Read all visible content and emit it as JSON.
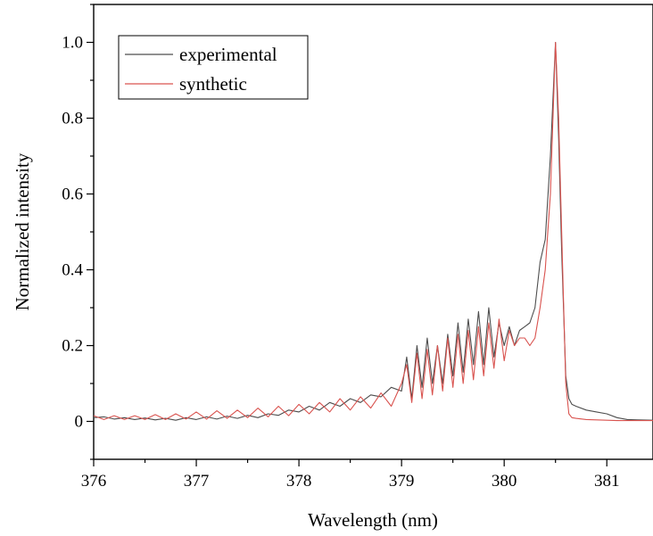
{
  "chart_data": {
    "type": "line",
    "title": "",
    "xlabel": "Wavelength (nm)",
    "ylabel": "Normalized intensity",
    "xlim": [
      376,
      381.45
    ],
    "ylim": [
      -0.1,
      1.1
    ],
    "xticks": [
      376,
      377,
      378,
      379,
      380,
      381
    ],
    "xtick_labels": [
      "376",
      "377",
      "378",
      "379",
      "380",
      "381"
    ],
    "yticks": [
      0,
      0.2,
      0.4,
      0.6,
      0.8,
      1.0
    ],
    "ytick_labels": [
      "0",
      "0.2",
      "0.4",
      "0.6",
      "0.8",
      "1.0"
    ],
    "grid": false,
    "legend_position": "top-left",
    "series": [
      {
        "name": "experimental",
        "color": "#4d4d4d",
        "x": [
          376.0,
          376.1,
          376.2,
          376.3,
          376.4,
          376.5,
          376.6,
          376.7,
          376.8,
          376.9,
          377.0,
          377.1,
          377.2,
          377.3,
          377.4,
          377.5,
          377.6,
          377.7,
          377.8,
          377.9,
          378.0,
          378.1,
          378.2,
          378.3,
          378.4,
          378.5,
          378.6,
          378.7,
          378.8,
          378.9,
          379.0,
          379.05,
          379.1,
          379.15,
          379.2,
          379.25,
          379.3,
          379.35,
          379.4,
          379.45,
          379.5,
          379.55,
          379.6,
          379.65,
          379.7,
          379.75,
          379.8,
          379.85,
          379.9,
          379.95,
          380.0,
          380.05,
          380.1,
          380.15,
          380.2,
          380.25,
          380.3,
          380.35,
          380.4,
          380.45,
          380.5,
          380.53,
          380.56,
          380.6,
          380.63,
          380.66,
          380.7,
          380.8,
          380.9,
          381.0,
          381.1,
          381.2,
          381.3,
          381.45
        ],
        "y": [
          0.01,
          0.012,
          0.006,
          0.01,
          0.005,
          0.009,
          0.004,
          0.008,
          0.003,
          0.01,
          0.005,
          0.012,
          0.006,
          0.014,
          0.008,
          0.016,
          0.01,
          0.02,
          0.016,
          0.03,
          0.025,
          0.04,
          0.03,
          0.05,
          0.04,
          0.06,
          0.05,
          0.07,
          0.065,
          0.09,
          0.08,
          0.17,
          0.06,
          0.2,
          0.09,
          0.22,
          0.1,
          0.2,
          0.1,
          0.23,
          0.12,
          0.26,
          0.13,
          0.27,
          0.15,
          0.29,
          0.15,
          0.3,
          0.17,
          0.26,
          0.2,
          0.25,
          0.2,
          0.24,
          0.25,
          0.26,
          0.3,
          0.42,
          0.48,
          0.7,
          1.0,
          0.75,
          0.45,
          0.12,
          0.06,
          0.045,
          0.04,
          0.03,
          0.025,
          0.02,
          0.01,
          0.005,
          0.004,
          0.003
        ]
      },
      {
        "name": "synthetic",
        "color": "#d9534f",
        "x": [
          376.0,
          376.1,
          376.2,
          376.3,
          376.4,
          376.5,
          376.6,
          376.7,
          376.8,
          376.9,
          377.0,
          377.1,
          377.2,
          377.3,
          377.4,
          377.5,
          377.6,
          377.7,
          377.8,
          377.9,
          378.0,
          378.1,
          378.2,
          378.3,
          378.4,
          378.5,
          378.6,
          378.7,
          378.8,
          378.9,
          379.0,
          379.05,
          379.1,
          379.15,
          379.2,
          379.25,
          379.3,
          379.35,
          379.4,
          379.45,
          379.5,
          379.55,
          379.6,
          379.65,
          379.7,
          379.75,
          379.8,
          379.85,
          379.9,
          379.95,
          380.0,
          380.05,
          380.1,
          380.15,
          380.2,
          380.25,
          380.3,
          380.35,
          380.4,
          380.45,
          380.5,
          380.53,
          380.56,
          380.6,
          380.63,
          380.66,
          380.7,
          380.8,
          380.9,
          381.0,
          381.1,
          381.2,
          381.3,
          381.45
        ],
        "y": [
          0.015,
          0.005,
          0.015,
          0.005,
          0.015,
          0.005,
          0.018,
          0.005,
          0.02,
          0.006,
          0.025,
          0.006,
          0.028,
          0.008,
          0.03,
          0.01,
          0.035,
          0.012,
          0.04,
          0.015,
          0.045,
          0.02,
          0.05,
          0.025,
          0.06,
          0.03,
          0.065,
          0.035,
          0.075,
          0.04,
          0.1,
          0.15,
          0.05,
          0.18,
          0.06,
          0.19,
          0.07,
          0.2,
          0.08,
          0.22,
          0.09,
          0.23,
          0.1,
          0.24,
          0.11,
          0.25,
          0.12,
          0.26,
          0.14,
          0.27,
          0.16,
          0.24,
          0.2,
          0.22,
          0.22,
          0.2,
          0.22,
          0.3,
          0.4,
          0.6,
          1.0,
          0.8,
          0.5,
          0.1,
          0.02,
          0.01,
          0.008,
          0.005,
          0.004,
          0.003,
          0.002,
          0.002,
          0.002,
          0.002
        ]
      }
    ]
  }
}
